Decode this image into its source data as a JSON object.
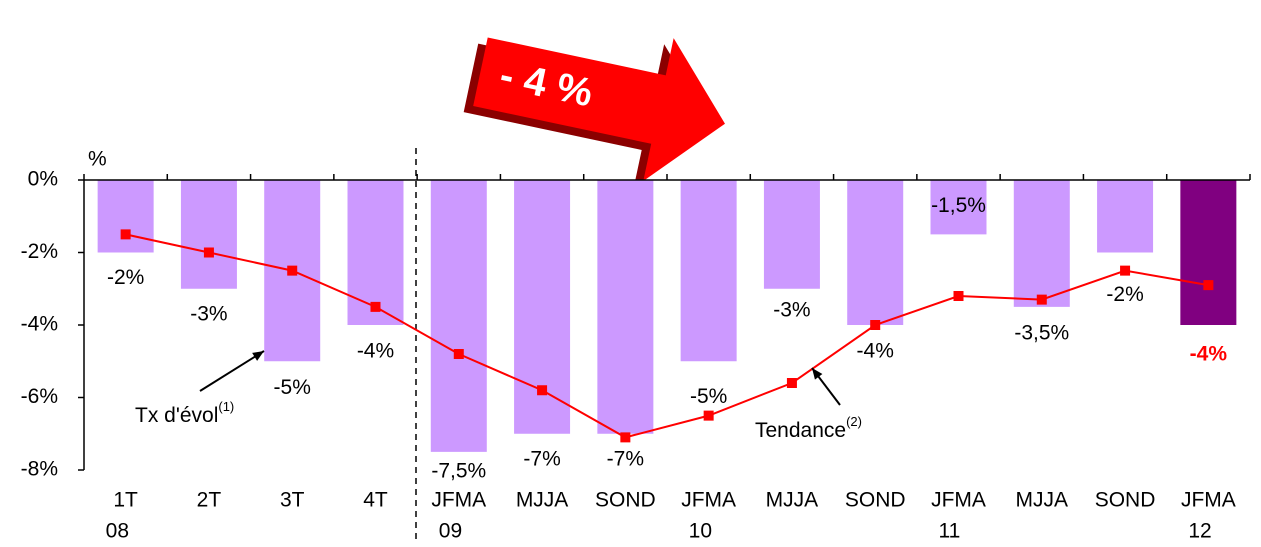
{
  "chart_data": {
    "type": "bar",
    "y_unit": "%",
    "banner": "- 4 %",
    "categories": [
      "1T",
      "2T",
      "3T",
      "4T",
      "JFMA",
      "MJJA",
      "SOND",
      "JFMA",
      "MJJA",
      "SOND",
      "JFMA",
      "MJJA",
      "SOND",
      "JFMA"
    ],
    "categories_line2": [
      "08",
      null,
      null,
      null,
      "09",
      null,
      null,
      "10",
      null,
      null,
      "11",
      null,
      null,
      "12"
    ],
    "series": [
      {
        "name": "Tx d'évol",
        "note": "(1)",
        "type": "bar",
        "colors": [
          "#cc99ff",
          "#cc99ff",
          "#cc99ff",
          "#cc99ff",
          "#cc99ff",
          "#cc99ff",
          "#cc99ff",
          "#cc99ff",
          "#cc99ff",
          "#cc99ff",
          "#cc99ff",
          "#cc99ff",
          "#cc99ff",
          "#800080"
        ],
        "values": [
          -2,
          -3,
          -5,
          -4,
          -7.5,
          -7,
          -7,
          -5,
          -3,
          -4,
          -1.5,
          -3.5,
          -2,
          -4
        ],
        "value_labels": [
          "-2%",
          "-3%",
          "-5%",
          "-4%",
          "-7,5%",
          "-7%",
          "-7%",
          "-5%",
          "-3%",
          "-4%",
          "-1,5%",
          "-3,5%",
          "-2%",
          "-4%"
        ]
      },
      {
        "name": "Tendance",
        "note": "(2)",
        "type": "line",
        "color": "#ff0000",
        "values": [
          -1.5,
          -2,
          -2.5,
          -3.5,
          -4.8,
          -5.8,
          -7.1,
          -6.5,
          -5.6,
          -4,
          -3.2,
          -3.3,
          -2.5,
          -2.9
        ]
      }
    ],
    "ylim": [
      -8,
      0
    ],
    "yticks": [
      {
        "value": 0,
        "label": "0%"
      },
      {
        "value": -2,
        "label": "-2%"
      },
      {
        "value": -4,
        "label": "-4%"
      },
      {
        "value": -6,
        "label": "-6%"
      },
      {
        "value": -8,
        "label": "-8%"
      }
    ]
  }
}
